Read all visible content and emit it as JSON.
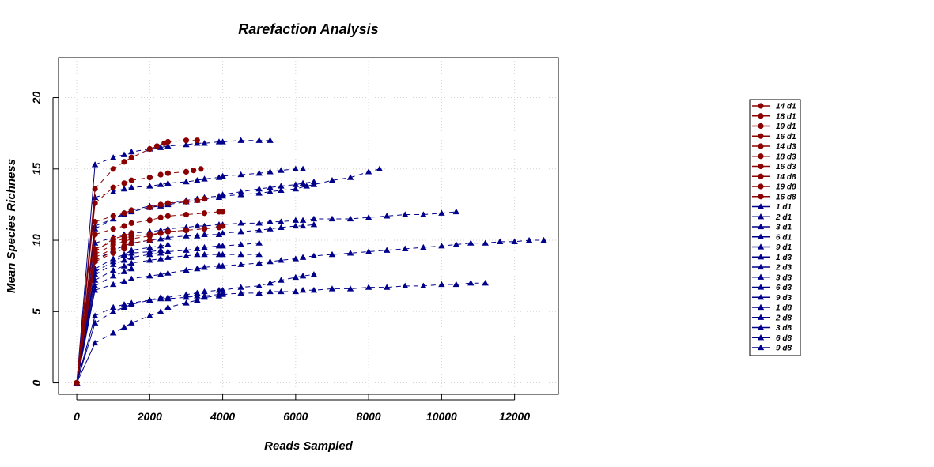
{
  "chart_data": {
    "type": "line",
    "title": "Rarefaction Analysis",
    "xlabel": "Reads Sampled",
    "ylabel": "Mean Species Richness",
    "xlim": [
      -500,
      13200
    ],
    "ylim": [
      -0.8,
      22.8
    ],
    "xticks": [
      0,
      2000,
      4000,
      6000,
      8000,
      10000,
      12000
    ],
    "xtick_labels": [
      "0",
      "2000",
      "4000",
      "6000",
      "8000",
      "10000",
      "12000"
    ],
    "yticks": [
      0,
      5,
      10,
      15,
      20
    ],
    "ytick_labels": [
      "0",
      "5",
      "10",
      "15",
      "20"
    ],
    "grid": true,
    "legend_position": "right",
    "colors": {
      "red": "#8B0000",
      "blue": "#00008B"
    },
    "series": [
      {
        "name": "14 d1",
        "color": "#8B0000",
        "marker": "circle",
        "x": [
          0,
          500,
          1000,
          1300,
          1500,
          2000,
          2200,
          2400,
          2500,
          3000,
          3300
        ],
        "y": [
          0,
          13.6,
          15.0,
          15.5,
          15.8,
          16.4,
          16.6,
          16.8,
          16.9,
          17.0,
          17.0
        ]
      },
      {
        "name": "18 d1",
        "color": "#8B0000",
        "marker": "circle",
        "x": [
          0,
          500,
          1000,
          1300,
          1500,
          2000,
          2300,
          2500,
          3000,
          3200,
          3400
        ],
        "y": [
          0,
          12.6,
          13.7,
          14.0,
          14.2,
          14.4,
          14.6,
          14.7,
          14.8,
          14.9,
          15.0
        ]
      },
      {
        "name": "19 d1",
        "color": "#8B0000",
        "marker": "circle",
        "x": [
          0,
          500,
          1000,
          1300,
          1500,
          2000,
          2300,
          2500,
          3000,
          3300,
          3500
        ],
        "y": [
          0,
          11.3,
          11.7,
          11.9,
          12.1,
          12.3,
          12.5,
          12.6,
          12.7,
          12.8,
          12.9
        ]
      },
      {
        "name": "16 d1",
        "color": "#8B0000",
        "marker": "circle",
        "x": [
          0,
          500,
          1000,
          1300,
          1500,
          2000,
          2300,
          2500,
          3000,
          3500,
          3900,
          4000
        ],
        "y": [
          0,
          10.4,
          10.8,
          11.0,
          11.2,
          11.4,
          11.6,
          11.7,
          11.8,
          11.9,
          12.0,
          12.0
        ]
      },
      {
        "name": "14 d3",
        "color": "#8B0000",
        "marker": "circle",
        "x": [
          0,
          500,
          1000,
          1300,
          1500,
          2000,
          2300,
          2500,
          3000,
          3500,
          3900,
          4000
        ],
        "y": [
          0,
          9.4,
          9.9,
          10.1,
          10.3,
          10.4,
          10.5,
          10.6,
          10.7,
          10.8,
          10.9,
          11.0
        ]
      },
      {
        "name": "18 d3",
        "color": "#8B0000",
        "marker": "circle",
        "x": [
          0,
          500,
          1000,
          1300,
          1500,
          2000,
          2300,
          2500,
          3000
        ],
        "y": [
          0,
          9.0,
          9.7,
          9.9,
          10.1,
          10.3,
          10.5,
          10.6,
          10.7
        ]
      },
      {
        "name": "16 d3",
        "color": "#8B0000",
        "marker": "circle",
        "x": [
          0,
          500,
          1000,
          1300,
          1500
        ],
        "y": [
          0,
          9.2,
          10.1,
          10.3,
          10.5
        ]
      },
      {
        "name": "14 d8",
        "color": "#8B0000",
        "marker": "circle",
        "x": [
          0,
          500,
          1000,
          1300,
          1500,
          2000
        ],
        "y": [
          0,
          8.8,
          9.4,
          9.6,
          9.8,
          10.0
        ]
      },
      {
        "name": "19 d8",
        "color": "#8B0000",
        "marker": "circle",
        "x": [
          0,
          500,
          1000,
          1300
        ],
        "y": [
          0,
          8.5,
          9.1,
          9.4
        ]
      },
      {
        "name": "16 d8",
        "color": "#8B0000",
        "marker": "circle",
        "x": [
          0,
          500,
          1000
        ],
        "y": [
          0,
          8.6,
          9.2
        ]
      },
      {
        "name": "1 d1",
        "color": "#00008B",
        "marker": "triangle",
        "x": [
          0,
          500,
          1000,
          1300,
          1500,
          2000,
          2300,
          2500,
          3000,
          3300,
          3500,
          3900,
          4000,
          4500,
          5000,
          5300
        ],
        "y": [
          0,
          15.3,
          15.8,
          16.0,
          16.2,
          16.4,
          16.5,
          16.6,
          16.7,
          16.8,
          16.8,
          16.9,
          16.9,
          17.0,
          17.0,
          17.0
        ]
      },
      {
        "name": "2 d1",
        "color": "#00008B",
        "marker": "triangle",
        "x": [
          0,
          500,
          1000,
          1300,
          1500,
          2000,
          2300,
          2500,
          3000,
          3300,
          3500,
          3900,
          4000,
          4500,
          5000,
          5300,
          5600,
          6000,
          6200
        ],
        "y": [
          0,
          13.0,
          13.4,
          13.6,
          13.7,
          13.8,
          13.9,
          14.0,
          14.1,
          14.2,
          14.3,
          14.4,
          14.5,
          14.6,
          14.7,
          14.8,
          14.9,
          15.0,
          15.0
        ]
      },
      {
        "name": "3 d1",
        "color": "#00008B",
        "marker": "triangle",
        "x": [
          0,
          500,
          1000,
          1300,
          1500,
          2000,
          2300,
          2500,
          3000,
          3300,
          3500,
          3900,
          4000,
          4500,
          5000,
          5300,
          5600,
          6000,
          6300,
          6500,
          7000,
          7500,
          8000,
          8300
        ],
        "y": [
          0,
          11.0,
          11.5,
          11.8,
          12.0,
          12.3,
          12.4,
          12.5,
          12.7,
          12.8,
          12.9,
          13.0,
          13.1,
          13.2,
          13.3,
          13.4,
          13.5,
          13.6,
          13.8,
          13.9,
          14.2,
          14.4,
          14.8,
          15.0
        ]
      },
      {
        "name": "6 d1",
        "color": "#00008B",
        "marker": "triangle",
        "x": [
          0,
          500,
          1000,
          1300,
          1500,
          2000,
          2300,
          2500,
          3000,
          3300,
          3500,
          3900,
          4000,
          4500,
          5000,
          5300,
          5600,
          6000,
          6200,
          6500
        ],
        "y": [
          0,
          10.8,
          11.5,
          11.9,
          12.1,
          12.4,
          12.5,
          12.6,
          12.8,
          12.9,
          13.0,
          13.1,
          13.2,
          13.4,
          13.6,
          13.7,
          13.8,
          13.9,
          14.0,
          14.1
        ]
      },
      {
        "name": "9 d1",
        "color": "#00008B",
        "marker": "triangle",
        "x": [
          0,
          500,
          1000,
          1300,
          1500,
          2000,
          2300,
          2500,
          3000,
          3300,
          3500,
          3900,
          4000,
          4500,
          5000,
          5300,
          5600,
          6000,
          6200,
          6500,
          7000,
          7500,
          8000,
          8500,
          9000,
          9500,
          10000,
          10400
        ],
        "y": [
          0,
          9.8,
          10.2,
          10.4,
          10.5,
          10.6,
          10.7,
          10.8,
          10.9,
          11.0,
          11.0,
          11.1,
          11.1,
          11.2,
          11.2,
          11.3,
          11.3,
          11.4,
          11.4,
          11.5,
          11.5,
          11.5,
          11.6,
          11.7,
          11.8,
          11.8,
          11.9,
          12.0
        ]
      },
      {
        "name": "1 d3",
        "color": "#00008B",
        "marker": "triangle",
        "x": [
          0,
          500,
          1000,
          1300,
          1500,
          2000,
          2300,
          2500,
          3000,
          3300,
          3500,
          3900,
          4000,
          4500,
          5000,
          5300,
          5600,
          6000,
          6200,
          6500
        ],
        "y": [
          0,
          8.6,
          9.3,
          9.6,
          9.8,
          10.0,
          10.1,
          10.2,
          10.3,
          10.3,
          10.4,
          10.4,
          10.5,
          10.6,
          10.7,
          10.8,
          10.9,
          11.0,
          11.0,
          11.1
        ]
      },
      {
        "name": "2 d3",
        "color": "#00008B",
        "marker": "triangle",
        "x": [
          0,
          500,
          1000,
          1300,
          1500,
          2000,
          2300,
          2500,
          3000,
          3300,
          3500,
          3900,
          4000,
          4500,
          5000
        ],
        "y": [
          0,
          7.6,
          8.3,
          8.6,
          8.8,
          9.0,
          9.1,
          9.2,
          9.3,
          9.4,
          9.5,
          9.6,
          9.6,
          9.7,
          9.8
        ]
      },
      {
        "name": "3 d3",
        "color": "#00008B",
        "marker": "triangle",
        "x": [
          0,
          500,
          1000,
          1300,
          1500,
          2000,
          2300,
          2500,
          3000,
          3300,
          3500,
          3900,
          4000,
          4500,
          5000
        ],
        "y": [
          0,
          7.2,
          7.9,
          8.2,
          8.4,
          8.6,
          8.7,
          8.8,
          8.9,
          9.0,
          9.0,
          9.0,
          9.0,
          9.0,
          9.0
        ]
      },
      {
        "name": "6 d3",
        "color": "#00008B",
        "marker": "triangle",
        "x": [
          0,
          500,
          1000,
          1300,
          1500,
          2000,
          2300,
          2500
        ],
        "y": [
          0,
          8.0,
          8.7,
          9.0,
          9.3,
          9.5,
          9.6,
          9.7
        ]
      },
      {
        "name": "9 d3",
        "color": "#00008B",
        "marker": "triangle",
        "x": [
          0,
          500,
          1000,
          1300,
          1500,
          2000,
          2300
        ],
        "y": [
          0,
          7.8,
          8.5,
          8.9,
          9.1,
          9.2,
          9.3
        ]
      },
      {
        "name": "1 d8",
        "color": "#00008B",
        "marker": "triangle",
        "x": [
          0,
          500,
          1000,
          1300,
          1500,
          2000,
          2300,
          2500,
          3000,
          3300,
          3500,
          3900,
          4000,
          4500,
          5000,
          5300,
          5600,
          6000,
          6200,
          6500,
          7000,
          7500,
          8000,
          8500,
          9000,
          9500,
          10000,
          10400,
          10800,
          11200,
          11600,
          12000,
          12400,
          12800
        ],
        "y": [
          0,
          6.5,
          6.9,
          7.1,
          7.3,
          7.5,
          7.6,
          7.7,
          7.9,
          8.0,
          8.1,
          8.2,
          8.2,
          8.3,
          8.4,
          8.5,
          8.6,
          8.7,
          8.8,
          8.9,
          9.0,
          9.1,
          9.2,
          9.3,
          9.4,
          9.5,
          9.6,
          9.7,
          9.8,
          9.8,
          9.9,
          9.9,
          10.0,
          10.0
        ]
      },
      {
        "name": "2 d8",
        "color": "#00008B",
        "marker": "triangle",
        "x": [
          0,
          500,
          1000,
          1300,
          1500
        ],
        "y": [
          0,
          6.8,
          7.5,
          7.8,
          8.0
        ]
      },
      {
        "name": "3 d8",
        "color": "#00008B",
        "marker": "triangle",
        "x": [
          0,
          500,
          1000,
          1300,
          1500,
          2000,
          2300,
          2500,
          3000,
          3300,
          3500,
          3900,
          4000,
          4500,
          5000,
          5300,
          5600,
          6000,
          6200,
          6500,
          7000,
          7500,
          8000,
          8500,
          9000,
          9500,
          10000,
          10400,
          10800,
          11200
        ],
        "y": [
          0,
          4.7,
          5.3,
          5.5,
          5.6,
          5.8,
          5.9,
          5.9,
          6.0,
          6.1,
          6.1,
          6.2,
          6.2,
          6.3,
          6.3,
          6.4,
          6.4,
          6.4,
          6.5,
          6.5,
          6.6,
          6.6,
          6.7,
          6.7,
          6.8,
          6.8,
          6.9,
          6.9,
          7.0,
          7.0
        ]
      },
      {
        "name": "6 d8",
        "color": "#00008B",
        "marker": "triangle",
        "x": [
          0,
          500,
          1000,
          1300,
          1500,
          2000,
          2300,
          2500,
          3000,
          3300,
          3500,
          3900,
          4000,
          4500,
          5000,
          5300,
          5600,
          6000,
          6200,
          6500
        ],
        "y": [
          0,
          4.2,
          5.0,
          5.3,
          5.5,
          5.8,
          6.0,
          6.0,
          6.2,
          6.3,
          6.4,
          6.5,
          6.5,
          6.7,
          6.8,
          7.0,
          7.2,
          7.4,
          7.5,
          7.6
        ]
      },
      {
        "name": "9 d8",
        "color": "#00008B",
        "marker": "triangle",
        "x": [
          0,
          500,
          1000,
          1300,
          1500,
          2000,
          2300,
          2500,
          3000,
          3300,
          3500,
          3900,
          4000
        ],
        "y": [
          0,
          2.8,
          3.5,
          3.9,
          4.2,
          4.7,
          5.0,
          5.3,
          5.6,
          5.8,
          6.0,
          6.1,
          6.3
        ]
      }
    ]
  }
}
